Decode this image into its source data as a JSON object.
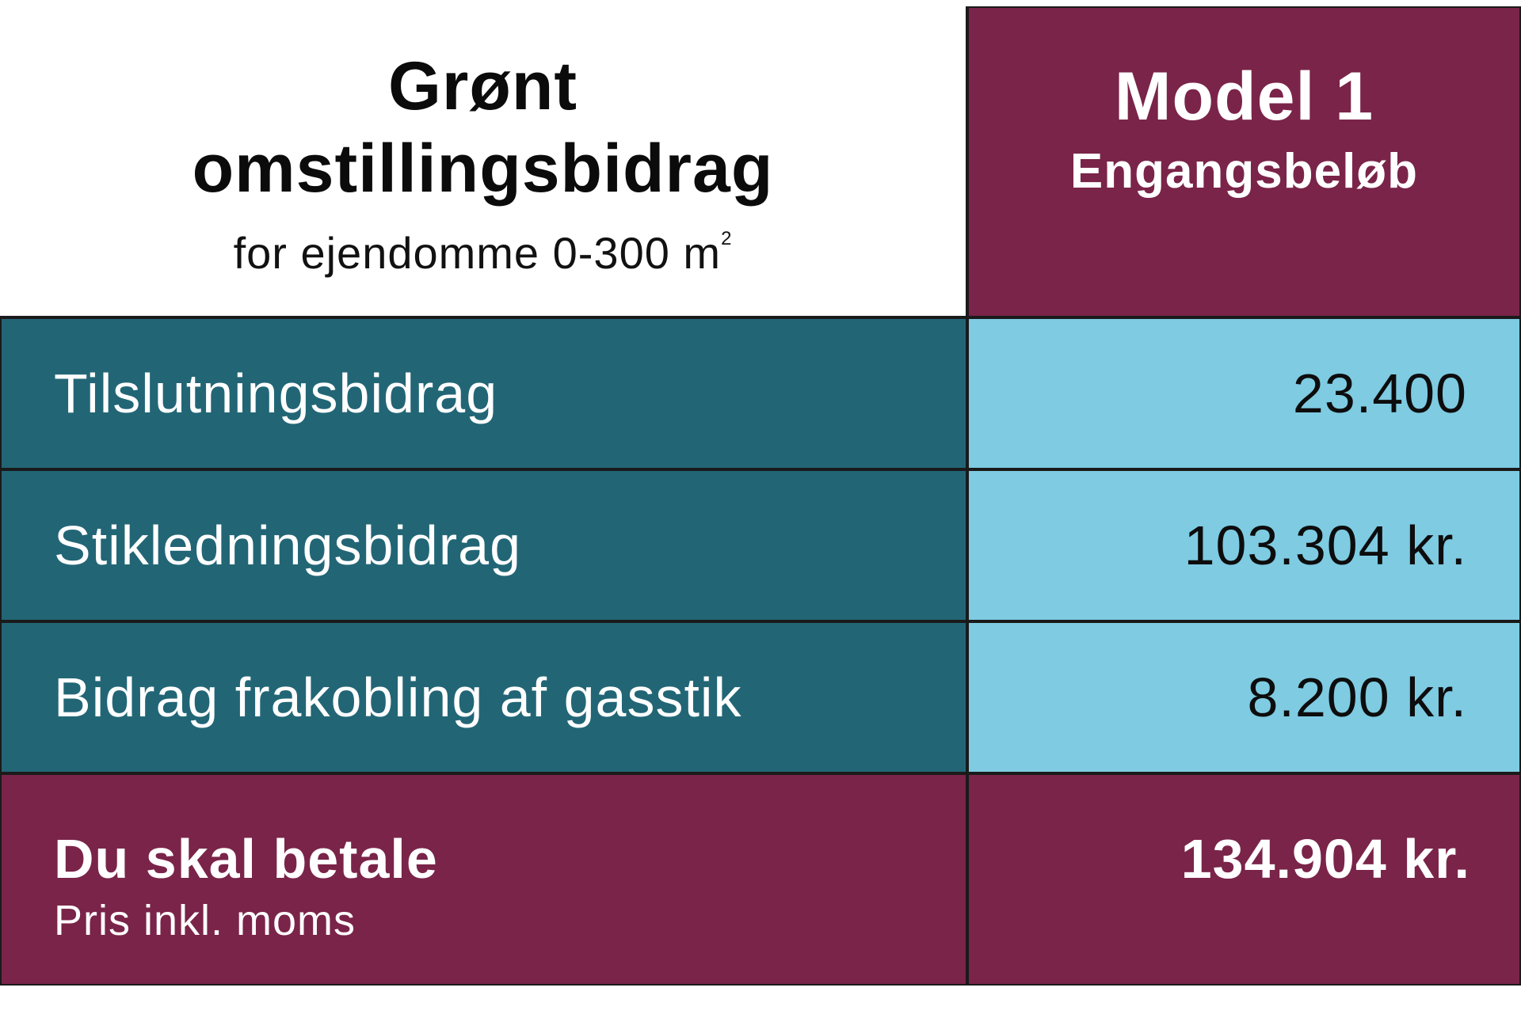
{
  "header": {
    "title_line1": "Grønt",
    "title_line2": "omstillingsbidrag",
    "subtitle_text": "for ejendomme 0-300 m",
    "subtitle_sup": "2",
    "model_title": "Model 1",
    "model_subtitle": "Engangsbeløb"
  },
  "rows": [
    {
      "label": "Tilslutningsbidrag",
      "value": "23.400"
    },
    {
      "label": "Stikledningsbidrag",
      "value": "103.304 kr."
    },
    {
      "label": "Bidrag frakobling af gasstik",
      "value": "8.200 kr."
    }
  ],
  "total": {
    "label": "Du skal betale",
    "note": "Pris inkl. moms",
    "value": "134.904 kr."
  },
  "colors": {
    "burgundy": "#7a2449",
    "teal": "#226676",
    "light_blue": "#7ecbe2",
    "border": "#1a1a1a"
  }
}
